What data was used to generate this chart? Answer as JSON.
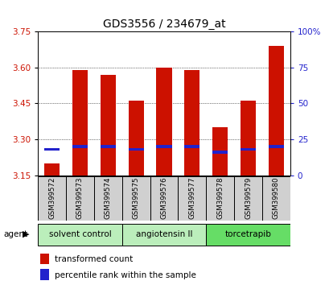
{
  "title": "GDS3556 / 234679_at",
  "samples": [
    "GSM399572",
    "GSM399573",
    "GSM399574",
    "GSM399575",
    "GSM399576",
    "GSM399577",
    "GSM399578",
    "GSM399579",
    "GSM399580"
  ],
  "transformed_counts": [
    3.2,
    3.59,
    3.57,
    3.46,
    3.6,
    3.59,
    3.35,
    3.46,
    3.69
  ],
  "percentile_ranks": [
    18,
    20,
    20,
    18,
    20,
    20,
    16,
    18,
    20
  ],
  "y_min": 3.15,
  "y_max": 3.75,
  "y_ticks": [
    3.15,
    3.3,
    3.45,
    3.6,
    3.75
  ],
  "right_y_ticks": [
    0,
    25,
    50,
    75,
    100
  ],
  "bar_color": "#cc1100",
  "blue_color": "#2222cc",
  "bar_width": 0.55,
  "groups": [
    {
      "label": "solvent control",
      "start": 0,
      "end": 3,
      "color": "#bbeebb"
    },
    {
      "label": "angiotensin II",
      "start": 3,
      "end": 6,
      "color": "#bbeebb"
    },
    {
      "label": "torcetrapib",
      "start": 6,
      "end": 9,
      "color": "#66dd66"
    }
  ],
  "agent_label": "agent",
  "legend_items": [
    {
      "label": "transformed count",
      "color": "#cc1100"
    },
    {
      "label": "percentile rank within the sample",
      "color": "#2222cc"
    }
  ],
  "tick_label_color": "#cc1100",
  "right_tick_color": "#2222cc",
  "grid_color": "#555555",
  "sample_bg_color": "#d0d0d0",
  "title_fontsize": 10,
  "axis_fontsize": 7.5,
  "legend_fontsize": 7.5
}
